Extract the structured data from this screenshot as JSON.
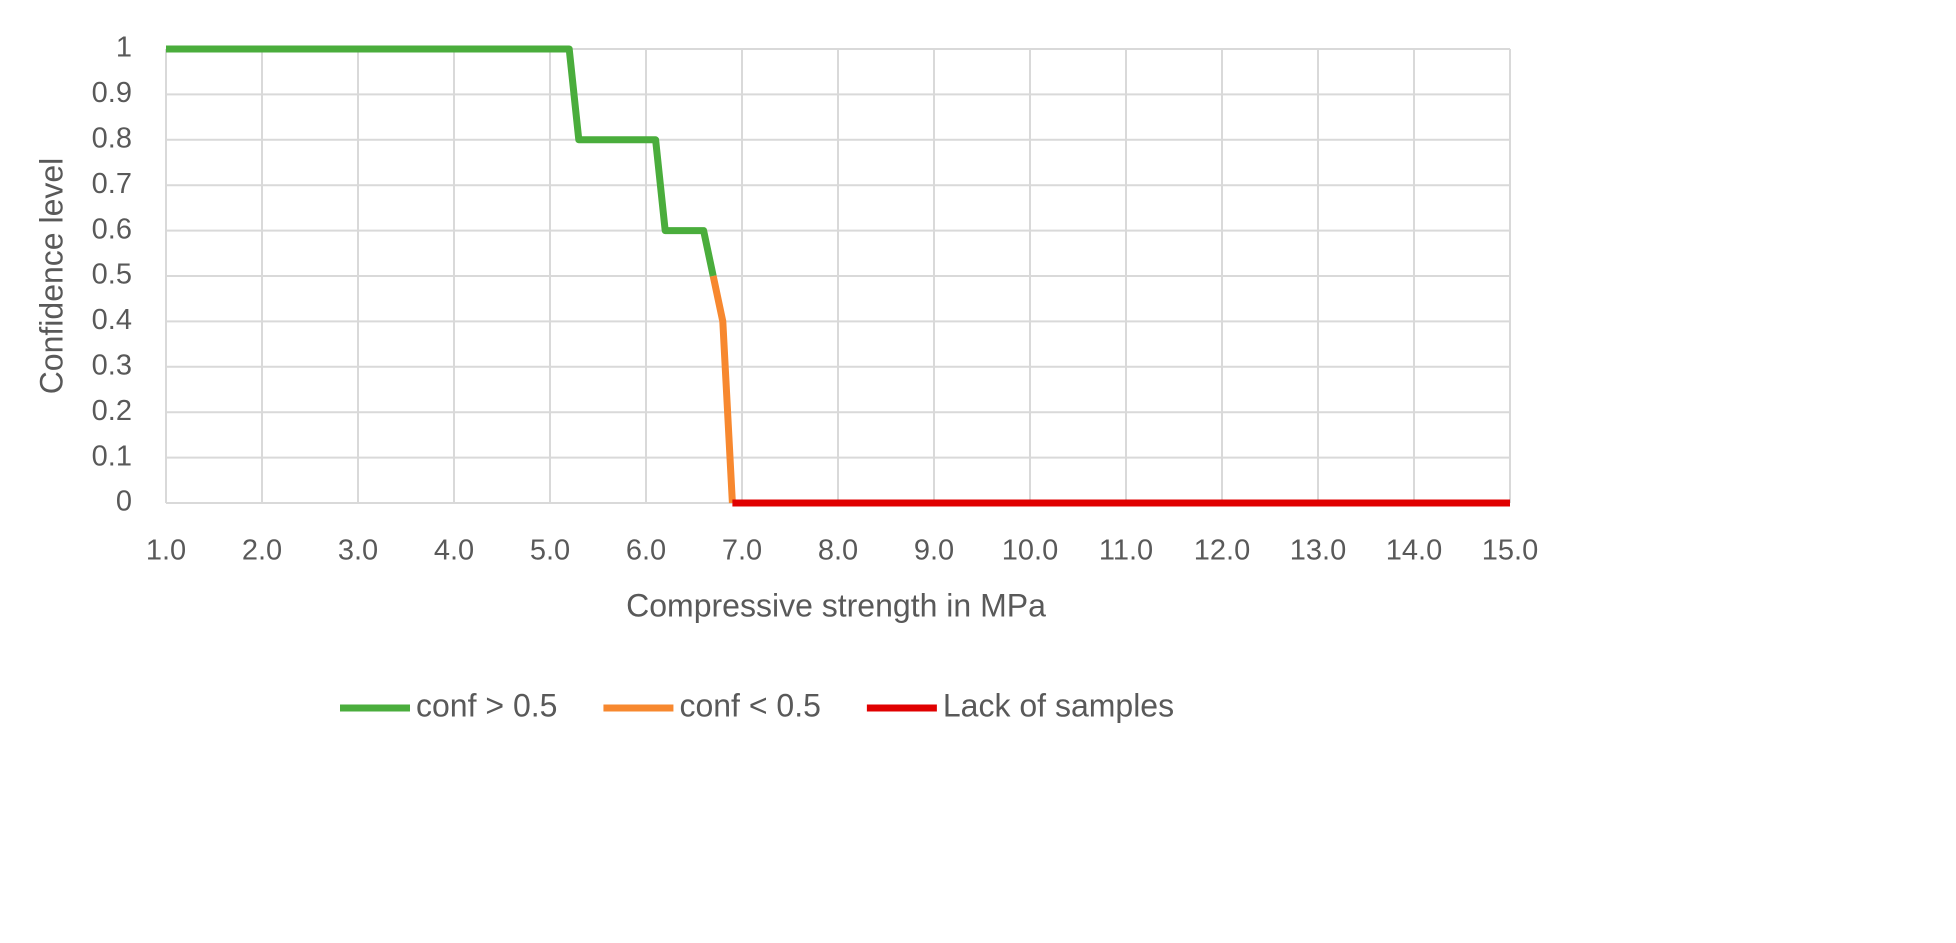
{
  "chart_data": {
    "type": "line",
    "x_label": "Compressive strength in MPa",
    "y_label": "Confidence level",
    "xlim": [
      1,
      15
    ],
    "xticks": [
      {
        "value": 1,
        "label": "1.0"
      },
      {
        "value": 2,
        "label": "2.0"
      },
      {
        "value": 3,
        "label": "3.0"
      },
      {
        "value": 4,
        "label": "4.0"
      },
      {
        "value": 5,
        "label": "5.0"
      },
      {
        "value": 6,
        "label": "6.0"
      },
      {
        "value": 7,
        "label": "7.0"
      },
      {
        "value": 8,
        "label": "8.0"
      },
      {
        "value": 9,
        "label": "9.0"
      },
      {
        "value": 10,
        "label": "10.0"
      },
      {
        "value": 11,
        "label": "11.0"
      },
      {
        "value": 12,
        "label": "12.0"
      },
      {
        "value": 13,
        "label": "13.0"
      },
      {
        "value": 14,
        "label": "14.0"
      },
      {
        "value": 15,
        "label": "15.0"
      }
    ],
    "ylim": [
      0,
      1
    ],
    "yticks": [
      0,
      0.1,
      0.2,
      0.3,
      0.4,
      0.5,
      0.6,
      0.7,
      0.8,
      0.9,
      1
    ],
    "grid": true,
    "legend": "bottom",
    "series": [
      {
        "name": "conf > 0.5",
        "color": "#4aad3c",
        "x": [
          1,
          5.2,
          5.3,
          6.1,
          6.2,
          6.6,
          6.7
        ],
        "values": [
          1,
          1,
          0.8,
          0.8,
          0.6,
          0.6,
          0.5
        ]
      },
      {
        "name": "conf < 0.5",
        "color": "#f7882f",
        "x": [
          6.7,
          6.8,
          6.9
        ],
        "values": [
          0.5,
          0.4,
          0
        ]
      },
      {
        "name": "Lack of samples",
        "color": "#e00000",
        "x": [
          6.9,
          15
        ],
        "values": [
          0,
          0
        ]
      }
    ]
  }
}
